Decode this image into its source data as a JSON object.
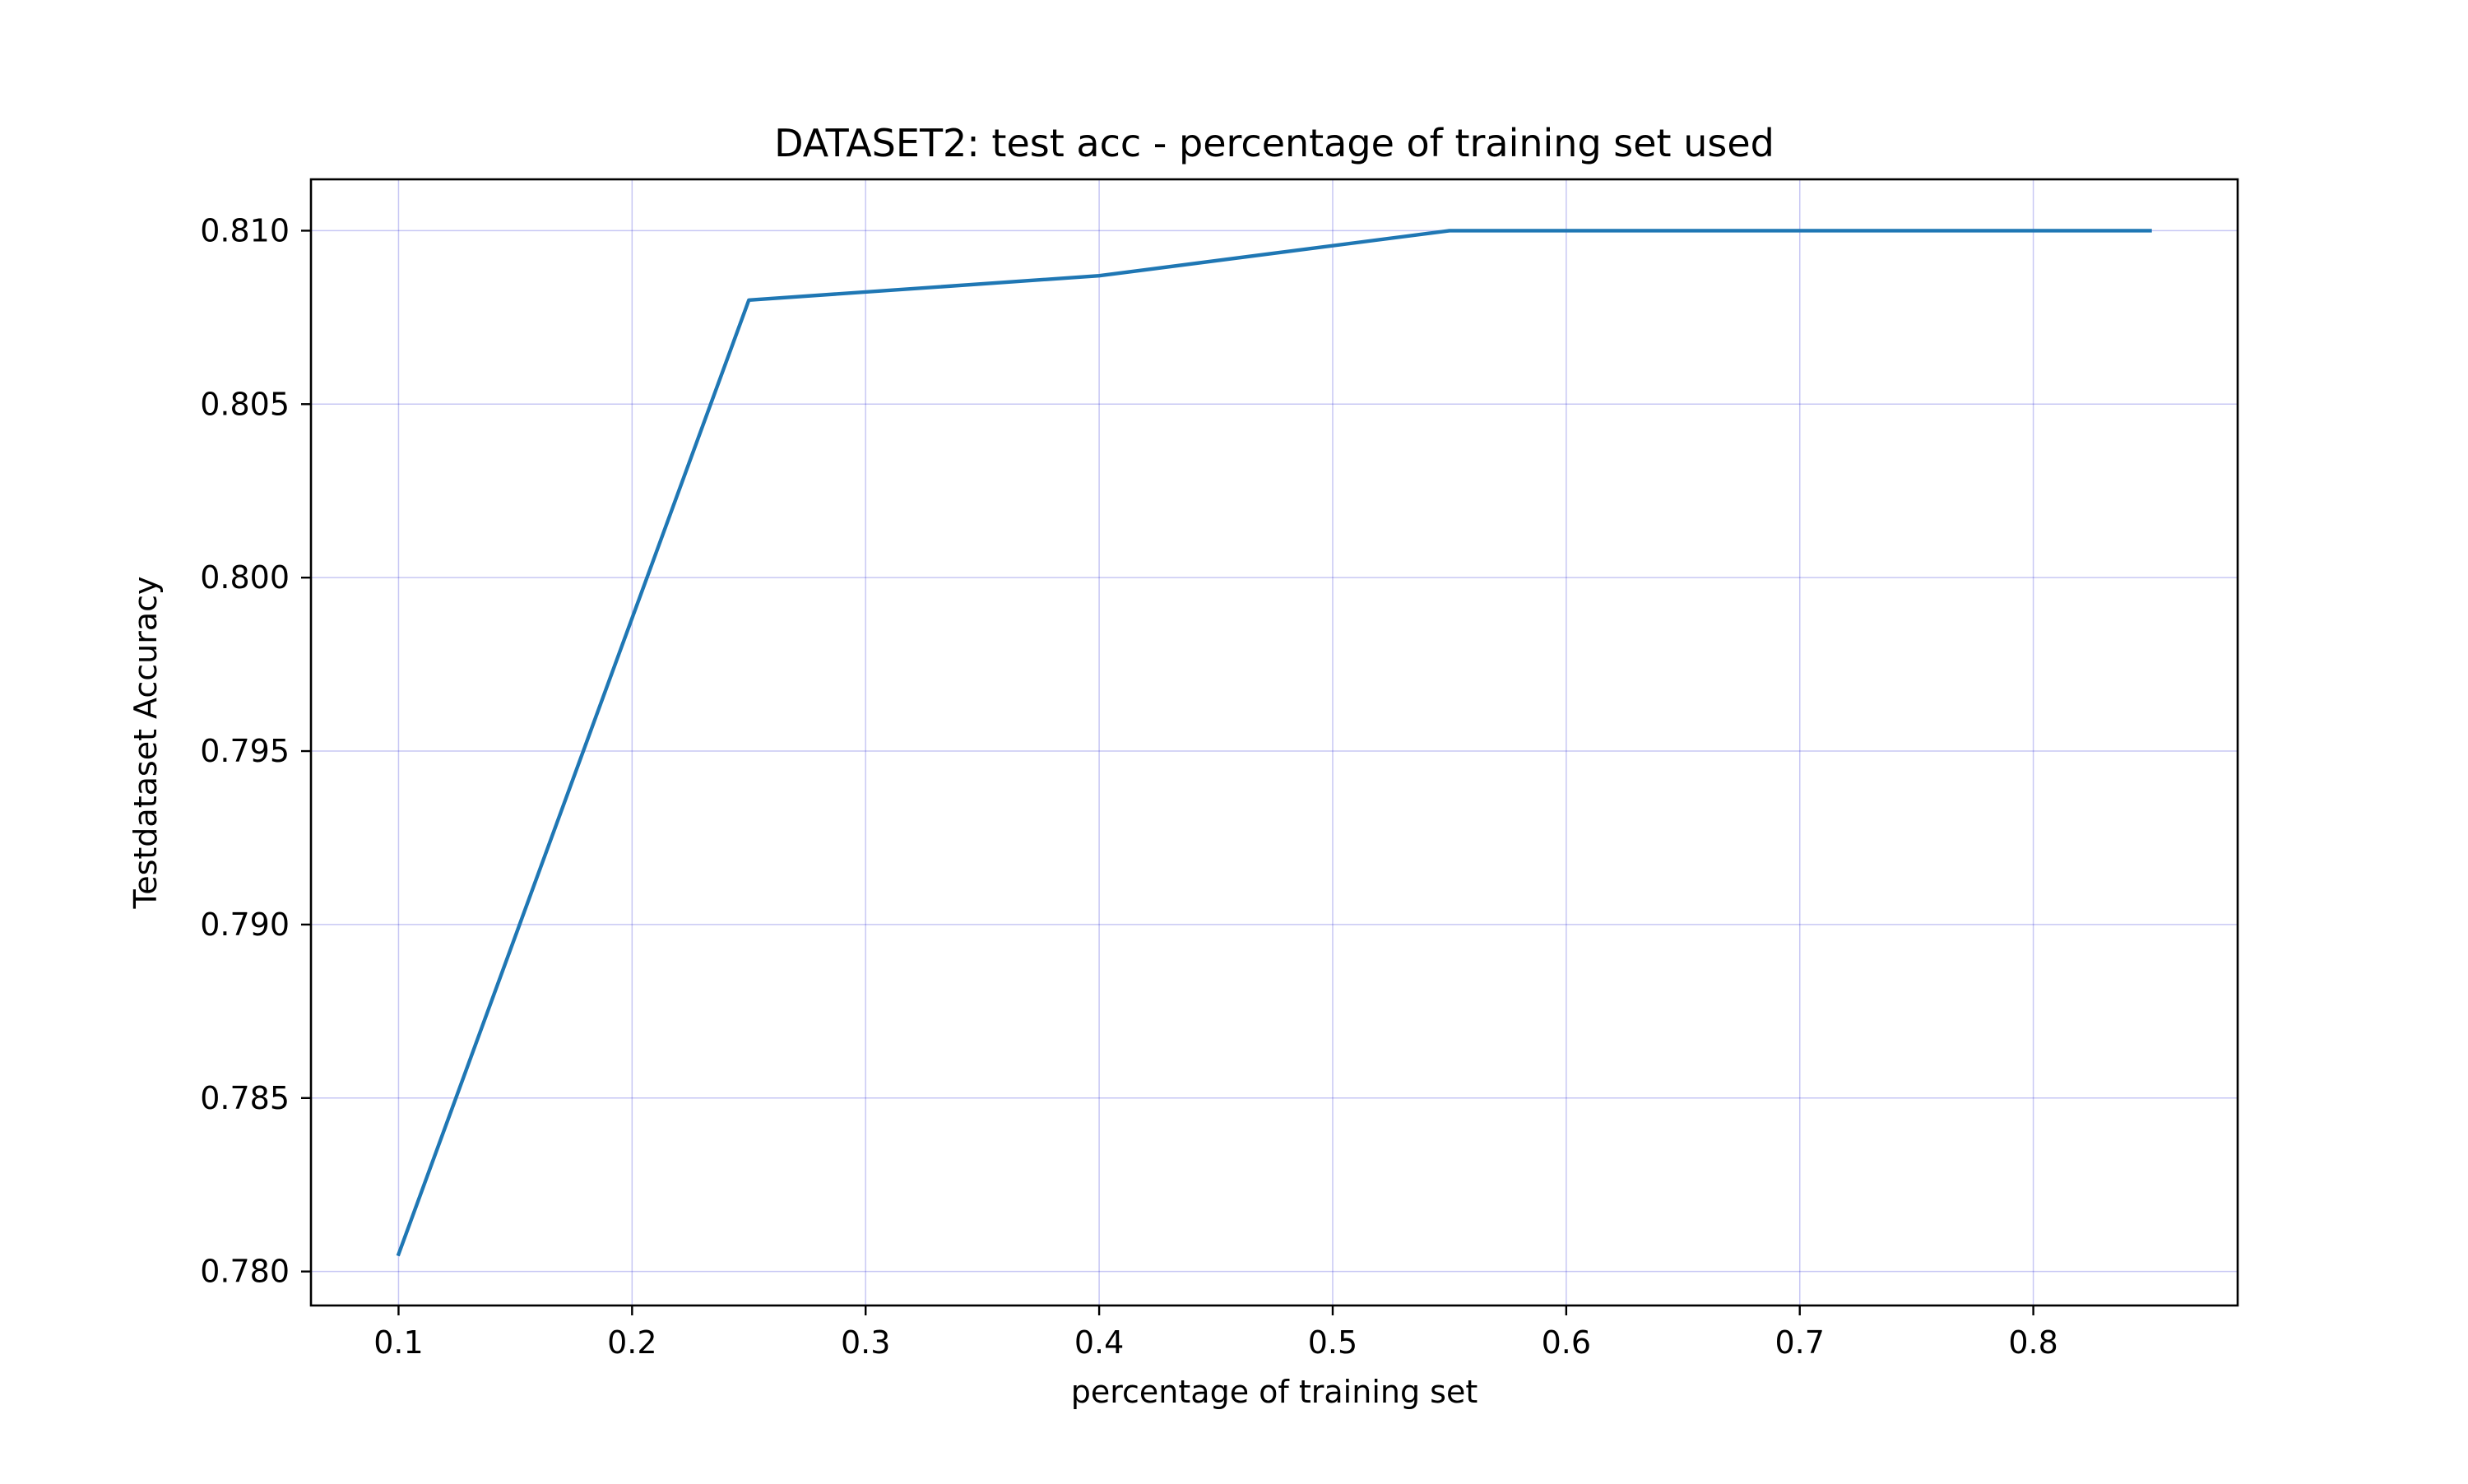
{
  "chart_data": {
    "type": "line",
    "title": "DATASET2: test acc - percentage of training set used",
    "xlabel": "percentage of training set",
    "ylabel": "Testdataset Accuracy",
    "xlim": [
      0.0625,
      0.8875
    ],
    "ylim": [
      0.77902,
      0.81148
    ],
    "xticks": [
      "0.1",
      "0.2",
      "0.3",
      "0.4",
      "0.5",
      "0.6",
      "0.7",
      "0.8"
    ],
    "yticks": [
      "0.780",
      "0.785",
      "0.790",
      "0.795",
      "0.800",
      "0.805",
      "0.810"
    ],
    "grid": true,
    "grid_color": "#0000cc",
    "legend": "none",
    "series": [
      {
        "color": "#1f77b4",
        "x": [
          0.1,
          0.25,
          0.4,
          0.55,
          0.7,
          0.85
        ],
        "y": [
          0.7805,
          0.808,
          0.8087,
          0.81,
          0.81,
          0.81
        ]
      }
    ]
  }
}
